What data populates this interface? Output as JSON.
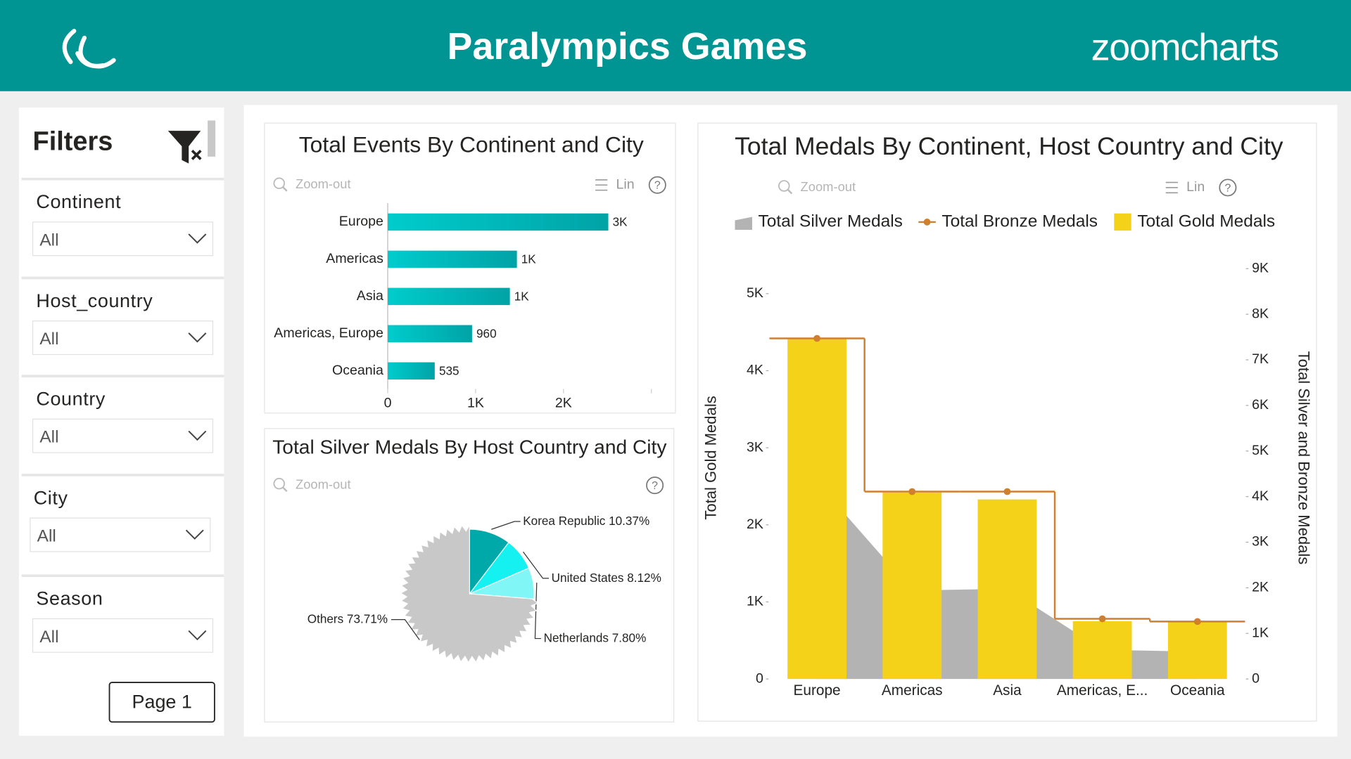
{
  "header": {
    "title": "Paralympics Games",
    "logo": "zoomcharts"
  },
  "filters": {
    "title": "Filters",
    "items": [
      {
        "label": "Continent",
        "value": "All"
      },
      {
        "label": "Host_country",
        "value": "All"
      },
      {
        "label": "Country",
        "value": "All"
      },
      {
        "label": "City",
        "value": "All"
      },
      {
        "label": "Season",
        "value": "All"
      }
    ],
    "page_button": "Page 1"
  },
  "chart_data": [
    {
      "type": "bar",
      "orientation": "horizontal",
      "title": "Total Events By Continent and City",
      "controls": {
        "zoom_out": "Zoom-out",
        "scale": "Lin",
        "help": "?"
      },
      "categories": [
        "Europe",
        "Americas",
        "Asia",
        "Americas, Europe",
        "Oceania"
      ],
      "values": [
        2510,
        1470,
        1390,
        960,
        535
      ],
      "value_labels": [
        "3K",
        "1K",
        "1K",
        "960",
        "535"
      ],
      "color": "#00b4b4",
      "xlim": [
        0,
        3000
      ],
      "xticks": [
        0,
        {
          "value": 1000,
          "label": "1K"
        },
        {
          "value": 2000,
          "label": "2K"
        }
      ]
    },
    {
      "type": "pie",
      "title": "Total Silver Medals By Host Country and City",
      "controls": {
        "zoom_out": "Zoom-out",
        "help": "?"
      },
      "categories": [
        "Korea Republic",
        "United States",
        "Netherlands",
        "Others"
      ],
      "values": [
        10.37,
        8.12,
        7.8,
        73.71
      ],
      "value_labels": [
        "10.37%",
        "8.12%",
        "7.80%",
        "73.71%"
      ],
      "colors": [
        "#00a9a9",
        "#15f0f0",
        "#80f6f6",
        "#c8c8c8"
      ]
    },
    {
      "type": "combo",
      "title": "Total Medals By Continent, Host Country and City",
      "controls": {
        "zoom_out": "Zoom-out",
        "scale": "Lin",
        "help": "?"
      },
      "categories": [
        "Europe",
        "Americas",
        "Asia",
        "Americas, E...",
        "Oceania"
      ],
      "series": [
        {
          "name": "Total Silver Medals",
          "kind": "area",
          "axis": "y2",
          "color": "#b3b3b3",
          "values": [
            4320,
            1940,
            1980,
            640,
            600
          ]
        },
        {
          "name": "Total Bronze Medals",
          "kind": "step",
          "axis": "y2",
          "color": "#d07f2e",
          "values": [
            7470,
            4110,
            4110,
            1320,
            1260
          ]
        },
        {
          "name": "Total Gold Medals",
          "kind": "bar",
          "axis": "y",
          "color": "#f5d21a",
          "values": [
            4420,
            2420,
            2330,
            750,
            740
          ]
        }
      ],
      "y_label": "Total Gold Medals",
      "y2_label": "Total Silver and Bronze Medals",
      "ylim": [
        0,
        5460
      ],
      "yticks": [
        0,
        {
          "value": 1000,
          "label": "1K"
        },
        {
          "value": 2000,
          "label": "2K"
        },
        {
          "value": 3000,
          "label": "3K"
        },
        {
          "value": 4000,
          "label": "4K"
        },
        {
          "value": 5000,
          "label": "5K"
        }
      ],
      "y2lim": [
        0,
        9230
      ],
      "y2ticks": [
        0,
        {
          "value": 1000,
          "label": "1K"
        },
        {
          "value": 2000,
          "label": "2K"
        },
        {
          "value": 3000,
          "label": "3K"
        },
        {
          "value": 4000,
          "label": "4K"
        },
        {
          "value": 5000,
          "label": "5K"
        },
        {
          "value": 6000,
          "label": "6K"
        },
        {
          "value": 7000,
          "label": "7K"
        },
        {
          "value": 8000,
          "label": "8K"
        },
        {
          "value": 9000,
          "label": "9K"
        }
      ]
    }
  ]
}
